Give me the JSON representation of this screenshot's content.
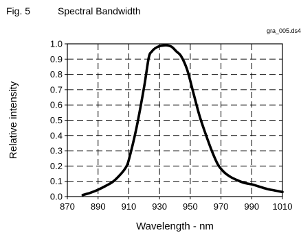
{
  "figure": {
    "number": "Fig. 5",
    "title": "Spectral Bandwidth",
    "file_tag": "gra_005.ds4"
  },
  "chart_data": {
    "type": "line",
    "title": "Spectral Bandwidth",
    "xlabel": "Wavelength - nm",
    "ylabel": "Relative intensity",
    "xlim": [
      870,
      1010
    ],
    "ylim": [
      0.0,
      1.0
    ],
    "x_ticks": [
      870,
      890,
      910,
      930,
      950,
      970,
      990,
      1010
    ],
    "y_ticks": [
      0.0,
      0.1,
      0.2,
      0.3,
      0.4,
      0.5,
      0.6,
      0.7,
      0.8,
      0.9,
      1.0
    ],
    "x_tick_labels": [
      "870",
      "890",
      "910",
      "930",
      "950",
      "970",
      "990",
      "1010"
    ],
    "y_tick_labels": [
      "0.0",
      "0.1",
      "0.2",
      "0.3",
      "0.4",
      "0.5",
      "0.6",
      "0.7",
      "0.8",
      "0.9",
      "1.0"
    ],
    "grid": true,
    "grid_style": "dashed",
    "line_color": "#000000",
    "series": [
      {
        "x": [
          880,
          885,
          890,
          895,
          900,
          905,
          908,
          910,
          915,
          920,
          923,
          925,
          927,
          930,
          933,
          935,
          938,
          941,
          944,
          948,
          952,
          956,
          960,
          964,
          968,
          972,
          976,
          980,
          985,
          990,
          995,
          1000,
          1005,
          1010
        ],
        "y": [
          0.01,
          0.025,
          0.045,
          0.07,
          0.1,
          0.15,
          0.19,
          0.24,
          0.45,
          0.72,
          0.91,
          0.95,
          0.97,
          0.985,
          0.99,
          0.99,
          0.98,
          0.95,
          0.92,
          0.83,
          0.68,
          0.53,
          0.41,
          0.3,
          0.21,
          0.16,
          0.13,
          0.11,
          0.09,
          0.08,
          0.065,
          0.05,
          0.04,
          0.03
        ]
      }
    ]
  }
}
